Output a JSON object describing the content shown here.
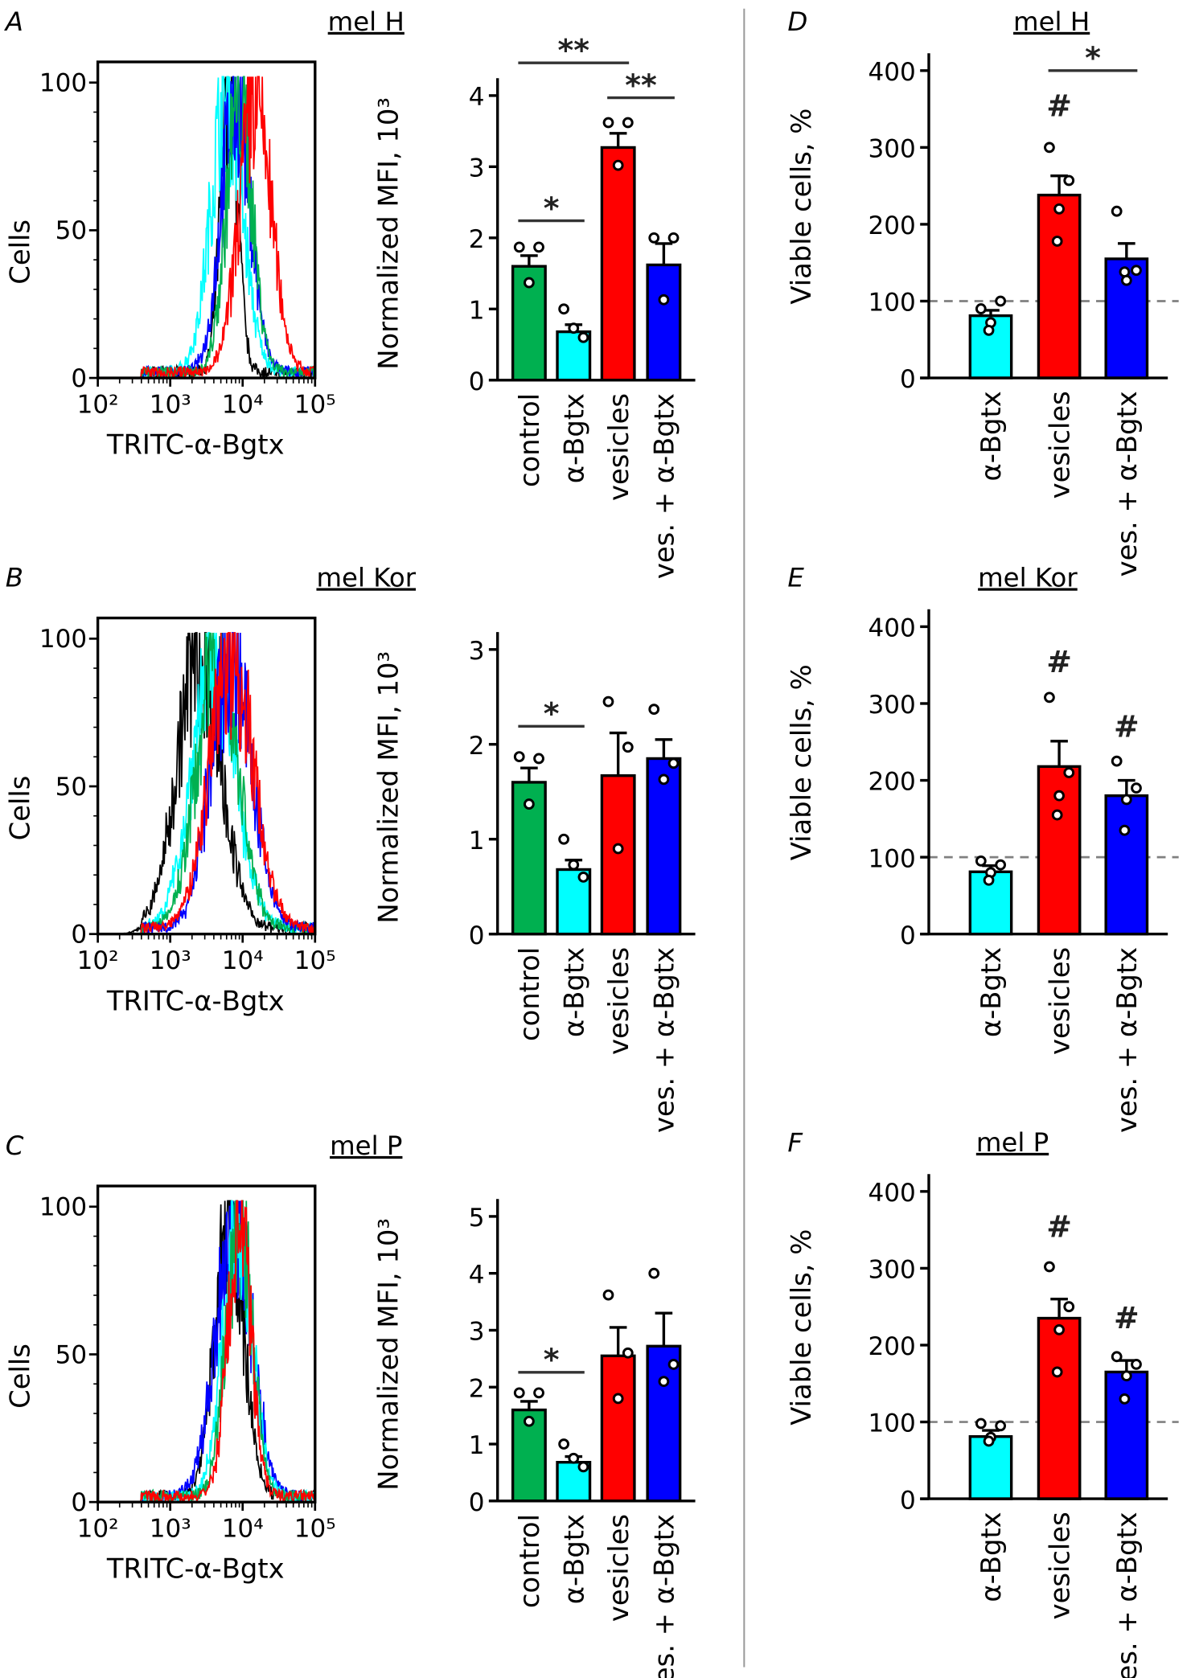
{
  "colors": {
    "black": "#000000",
    "cyan": "#00ffff",
    "blue": "#0000ff",
    "green": "#00b050",
    "red": "#ff0000",
    "reference": "#808080"
  },
  "chart_data": [
    {
      "panel": "A",
      "type": "line",
      "subtype": "histogram",
      "title": "mel H",
      "xlabel": "TRITC-α-Bgtx",
      "ylabel": "Cells",
      "xscale": "log",
      "xlim": [
        100,
        100000
      ],
      "xticks": [
        "10²",
        "10³",
        "10⁴",
        "10⁵"
      ],
      "ylim": [
        0,
        107
      ],
      "yticks": [
        0,
        50,
        100
      ],
      "series": [
        {
          "color": "#000000",
          "peak": 6500,
          "width": 0.12
        },
        {
          "color": "#00ffff",
          "peak": 6000,
          "width": 0.22
        },
        {
          "color": "#0000ff",
          "peak": 8000,
          "width": 0.2
        },
        {
          "color": "#00b050",
          "peak": 9000,
          "width": 0.18
        },
        {
          "color": "#ff0000",
          "peak": 15000,
          "width": 0.22
        }
      ]
    },
    {
      "panel": "A",
      "type": "bar",
      "ylabel": "Normalized MFI, 10³",
      "categories": [
        "control",
        "α-Bgtx",
        "vesicles",
        "ves. + α-Bgtx"
      ],
      "bar_colors": [
        "#00b050",
        "#00ffff",
        "#ff0000",
        "#0000ff"
      ],
      "values": [
        1.6,
        0.68,
        3.27,
        1.62
      ],
      "errors": [
        0.15,
        0.1,
        0.2,
        0.3
      ],
      "points": [
        [
          1.87,
          1.87,
          1.37
        ],
        [
          1.0,
          0.6,
          0.73
        ],
        [
          3.62,
          3.62,
          3.02
        ],
        [
          2.0,
          2.0,
          1.13
        ]
      ],
      "ylim": [
        0,
        4
      ],
      "yticks": [
        0,
        1,
        2,
        3,
        4
      ],
      "annotations": [
        {
          "from": 0,
          "to": 2,
          "level": 4.46,
          "label": "**"
        },
        {
          "from": 2,
          "to": 3,
          "level": 3.97,
          "label": "**"
        },
        {
          "from": 0,
          "to": 1,
          "level": 2.24,
          "label": "*"
        }
      ]
    },
    {
      "panel": "B",
      "type": "line",
      "subtype": "histogram",
      "title": "mel Kor",
      "xlabel": "TRITC-α-Bgtx",
      "ylabel": "Cells",
      "xscale": "log",
      "xlim": [
        100,
        100000
      ],
      "xticks": [
        "10²",
        "10³",
        "10⁴",
        "10⁵"
      ],
      "ylim": [
        0,
        107
      ],
      "yticks": [
        0,
        50,
        100
      ],
      "series": [
        {
          "color": "#000000",
          "peak": 2500,
          "width": 0.3
        },
        {
          "color": "#00ffff",
          "peak": 4000,
          "width": 0.3
        },
        {
          "color": "#00b050",
          "peak": 4500,
          "width": 0.28
        },
        {
          "color": "#0000ff",
          "peak": 7000,
          "width": 0.28
        },
        {
          "color": "#ff0000",
          "peak": 7000,
          "width": 0.3
        }
      ]
    },
    {
      "panel": "B",
      "type": "bar",
      "ylabel": "Normalized MFI, 10³",
      "categories": [
        "control",
        "α-Bgtx",
        "vesicles",
        "ves. + α-Bgtx"
      ],
      "bar_colors": [
        "#00b050",
        "#00ffff",
        "#ff0000",
        "#0000ff"
      ],
      "values": [
        1.6,
        0.68,
        1.67,
        1.85
      ],
      "errors": [
        0.15,
        0.1,
        0.45,
        0.2
      ],
      "points": [
        [
          1.87,
          1.85,
          1.37
        ],
        [
          1.0,
          0.6,
          0.73
        ],
        [
          2.45,
          1.97,
          0.9
        ],
        [
          2.37,
          1.8,
          1.63
        ]
      ],
      "ylim": [
        0,
        3
      ],
      "yticks": [
        0,
        1,
        2,
        3
      ],
      "annotations": [
        {
          "from": 0,
          "to": 1,
          "level": 2.19,
          "label": "*"
        }
      ]
    },
    {
      "panel": "C",
      "type": "line",
      "subtype": "histogram",
      "title": "mel P",
      "xlabel": "TRITC-α-Bgtx",
      "ylabel": "Cells",
      "xscale": "log",
      "xlim": [
        100,
        100000
      ],
      "xticks": [
        "10²",
        "10³",
        "10⁴",
        "10⁵"
      ],
      "ylim": [
        0,
        107
      ],
      "yticks": [
        0,
        50,
        100
      ],
      "series": [
        {
          "color": "#000000",
          "peak": 6500,
          "width": 0.2
        },
        {
          "color": "#0000ff",
          "peak": 7500,
          "width": 0.25
        },
        {
          "color": "#00ffff",
          "peak": 8500,
          "width": 0.2
        },
        {
          "color": "#00b050",
          "peak": 9000,
          "width": 0.18
        },
        {
          "color": "#ff0000",
          "peak": 9000,
          "width": 0.16
        }
      ]
    },
    {
      "panel": "C",
      "type": "bar",
      "ylabel": "Normalized MFI, 10³",
      "categories": [
        "control",
        "α-Bgtx",
        "vesicles",
        "ves. + α-Bgtx"
      ],
      "bar_colors": [
        "#00b050",
        "#00ffff",
        "#ff0000",
        "#0000ff"
      ],
      "values": [
        1.6,
        0.68,
        2.55,
        2.72
      ],
      "errors": [
        0.15,
        0.1,
        0.5,
        0.58
      ],
      "points": [
        [
          1.9,
          1.9,
          1.4
        ],
        [
          1.0,
          0.6,
          0.75
        ],
        [
          3.62,
          2.6,
          1.8
        ],
        [
          4.0,
          2.4,
          2.1
        ]
      ],
      "ylim": [
        0,
        5
      ],
      "yticks": [
        0,
        1,
        2,
        3,
        4,
        5
      ],
      "annotations": [
        {
          "from": 0,
          "to": 1,
          "level": 2.26,
          "label": "*"
        }
      ]
    },
    {
      "panel": "D",
      "type": "bar",
      "title": "mel H",
      "ylabel": "Viable cells, %",
      "categories": [
        "α-Bgtx",
        "vesicles",
        "ves. + α-Bgtx"
      ],
      "bar_colors": [
        "#00ffff",
        "#ff0000",
        "#0000ff"
      ],
      "values": [
        81,
        238,
        155
      ],
      "errors": [
        7,
        25,
        20
      ],
      "points": [
        [
          90,
          100,
          72,
          62
        ],
        [
          300,
          257,
          220,
          178
        ],
        [
          217,
          140,
          127,
          138
        ]
      ],
      "ylim": [
        0,
        400
      ],
      "yticks": [
        0,
        100,
        200,
        300,
        400
      ],
      "reference_line": 100,
      "annotations": [
        {
          "from": 1,
          "to": 2,
          "level": 400,
          "label": "*"
        },
        {
          "at": 1,
          "level": 352,
          "label": "#"
        }
      ]
    },
    {
      "panel": "E",
      "type": "bar",
      "title": "mel Kor",
      "ylabel": "Viable cells, %",
      "categories": [
        "α-Bgtx",
        "vesicles",
        "ves. + α-Bgtx"
      ],
      "bar_colors": [
        "#00ffff",
        "#ff0000",
        "#0000ff"
      ],
      "values": [
        81,
        218,
        180
      ],
      "errors": [
        8,
        33,
        20
      ],
      "points": [
        [
          95,
          90,
          80,
          70
        ],
        [
          308,
          210,
          180,
          155
        ],
        [
          225,
          190,
          175,
          135
        ]
      ],
      "ylim": [
        0,
        400
      ],
      "yticks": [
        0,
        100,
        200,
        300,
        400
      ],
      "reference_line": 100,
      "annotations": [
        {
          "at": 1,
          "level": 352,
          "label": "#"
        },
        {
          "at": 2,
          "level": 268,
          "label": "#"
        }
      ]
    },
    {
      "panel": "F",
      "type": "bar",
      "title": "mel P",
      "ylabel": "Viable cells, %",
      "categories": [
        "α-Bgtx",
        "vesicles",
        "ves. + α-Bgtx"
      ],
      "bar_colors": [
        "#00ffff",
        "#ff0000",
        "#0000ff"
      ],
      "values": [
        81,
        235,
        165
      ],
      "errors": [
        8,
        25,
        15
      ],
      "points": [
        [
          98,
          95,
          80,
          75
        ],
        [
          302,
          250,
          220,
          165
        ],
        [
          185,
          175,
          160,
          130
        ]
      ],
      "ylim": [
        0,
        400
      ],
      "yticks": [
        0,
        100,
        200,
        300,
        400
      ],
      "reference_line": 100,
      "annotations": [
        {
          "at": 1,
          "level": 352,
          "label": "#"
        },
        {
          "at": 2,
          "level": 233,
          "label": "#"
        }
      ]
    }
  ]
}
